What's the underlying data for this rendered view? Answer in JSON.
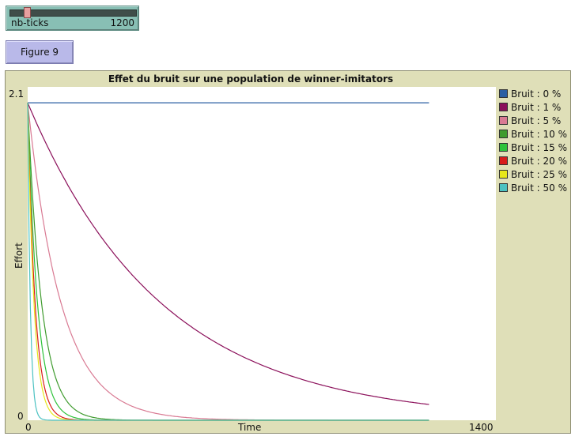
{
  "slider": {
    "label": "nb-ticks",
    "value": "1200",
    "position": 0.11
  },
  "button": {
    "label": "Figure 9"
  },
  "chart_data": {
    "type": "line",
    "title": "Effet du bruit sur une population de winner-imitators",
    "xlabel": "Time",
    "ylabel": "Effort",
    "xlim": [
      0,
      1400
    ],
    "ylim": [
      0,
      2.1
    ],
    "x_tick_labels": [
      "0",
      "1400"
    ],
    "y_tick_labels": [
      "0",
      "2.1"
    ],
    "legend_position": "right",
    "x_end": 1200,
    "series": [
      {
        "name": "Bruit : 0 %",
        "color": "#2b5fa3",
        "start": 2.0,
        "rate": 0.0
      },
      {
        "name": "Bruit : 1 %",
        "color": "#8b0f5a",
        "start": 2.0,
        "rate": 0.0025
      },
      {
        "name": "Bruit : 5 %",
        "color": "#d97a93",
        "start": 2.0,
        "rate": 0.01
      },
      {
        "name": "Bruit : 10 %",
        "color": "#3f9b2e",
        "start": 2.0,
        "rate": 0.024
      },
      {
        "name": "Bruit : 15 %",
        "color": "#2ec23a",
        "start": 2.0,
        "rate": 0.034
      },
      {
        "name": "Bruit : 20 %",
        "color": "#d81b1b",
        "start": 2.0,
        "rate": 0.045
      },
      {
        "name": "Bruit : 25 %",
        "color": "#e6e61a",
        "start": 2.0,
        "rate": 0.053
      },
      {
        "name": "Bruit : 50 %",
        "color": "#4cc2c2",
        "start": 2.0,
        "rate": 0.13
      }
    ]
  }
}
